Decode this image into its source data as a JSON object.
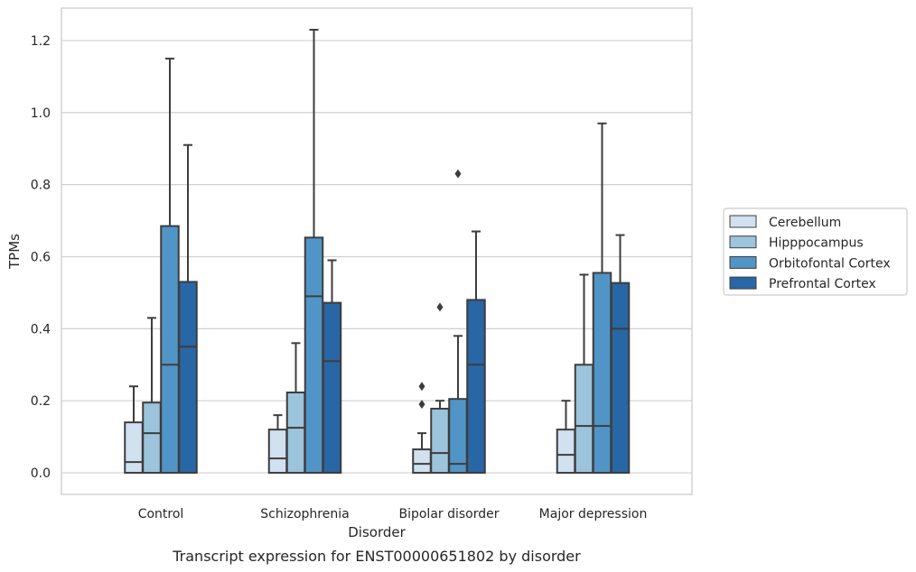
{
  "chart_data": {
    "type": "box",
    "title": "",
    "caption": "Transcript expression for ENST00000651802 by disorder",
    "xlabel": "Disorder",
    "ylabel": "TPMs",
    "ylim": [
      -0.06,
      1.29
    ],
    "yticks": [
      0.0,
      0.2,
      0.4,
      0.6,
      0.8,
      1.0,
      1.2
    ],
    "ytick_labels": [
      "0.0",
      "0.2",
      "0.4",
      "0.6",
      "0.8",
      "1.0",
      "1.2"
    ],
    "grid": "horizontal",
    "legend_position": "right",
    "categories": [
      "Control",
      "Schizophrenia",
      "Bipolar disorder",
      "Major depression"
    ],
    "series": [
      {
        "name": "Cerebellum",
        "color": "#d1e1f0",
        "boxes": [
          {
            "q1": 0.0,
            "median": 0.03,
            "q3": 0.14,
            "whisker_low": 0.0,
            "whisker_high": 0.24,
            "outliers": []
          },
          {
            "q1": 0.0,
            "median": 0.04,
            "q3": 0.12,
            "whisker_low": 0.0,
            "whisker_high": 0.16,
            "outliers": []
          },
          {
            "q1": 0.0,
            "median": 0.025,
            "q3": 0.065,
            "whisker_low": 0.0,
            "whisker_high": 0.11,
            "outliers": [
              0.19,
              0.24
            ]
          },
          {
            "q1": 0.0,
            "median": 0.05,
            "q3": 0.12,
            "whisker_low": 0.0,
            "whisker_high": 0.2,
            "outliers": []
          }
        ]
      },
      {
        "name": "Hipppocampus",
        "color": "#9cc4dc",
        "boxes": [
          {
            "q1": 0.0,
            "median": 0.11,
            "q3": 0.195,
            "whisker_low": 0.0,
            "whisker_high": 0.43,
            "outliers": []
          },
          {
            "q1": 0.0,
            "median": 0.125,
            "q3": 0.223,
            "whisker_low": 0.0,
            "whisker_high": 0.36,
            "outliers": []
          },
          {
            "q1": 0.0,
            "median": 0.055,
            "q3": 0.178,
            "whisker_low": 0.0,
            "whisker_high": 0.2,
            "outliers": [
              0.46
            ]
          },
          {
            "q1": 0.0,
            "median": 0.13,
            "q3": 0.3,
            "whisker_low": 0.0,
            "whisker_high": 0.55,
            "outliers": []
          }
        ]
      },
      {
        "name": "Orbitofontal Cortex",
        "color": "#5195c6",
        "boxes": [
          {
            "q1": 0.0,
            "median": 0.3,
            "q3": 0.685,
            "whisker_low": 0.0,
            "whisker_high": 1.15,
            "outliers": []
          },
          {
            "q1": 0.0,
            "median": 0.49,
            "q3": 0.653,
            "whisker_low": 0.0,
            "whisker_high": 1.23,
            "outliers": []
          },
          {
            "q1": 0.0,
            "median": 0.025,
            "q3": 0.205,
            "whisker_low": 0.0,
            "whisker_high": 0.38,
            "outliers": [
              0.83
            ]
          },
          {
            "q1": 0.0,
            "median": 0.13,
            "q3": 0.555,
            "whisker_low": 0.0,
            "whisker_high": 0.97,
            "outliers": []
          }
        ]
      },
      {
        "name": "Prefrontal Cortex",
        "color": "#2866a5",
        "boxes": [
          {
            "q1": 0.0,
            "median": 0.35,
            "q3": 0.53,
            "whisker_low": 0.0,
            "whisker_high": 0.91,
            "outliers": []
          },
          {
            "q1": 0.0,
            "median": 0.31,
            "q3": 0.472,
            "whisker_low": 0.0,
            "whisker_high": 0.59,
            "outliers": []
          },
          {
            "q1": 0.0,
            "median": 0.3,
            "q3": 0.48,
            "whisker_low": 0.0,
            "whisker_high": 0.67,
            "outliers": []
          },
          {
            "q1": 0.0,
            "median": 0.4,
            "q3": 0.527,
            "whisker_low": 0.0,
            "whisker_high": 0.66,
            "outliers": []
          }
        ]
      }
    ]
  }
}
